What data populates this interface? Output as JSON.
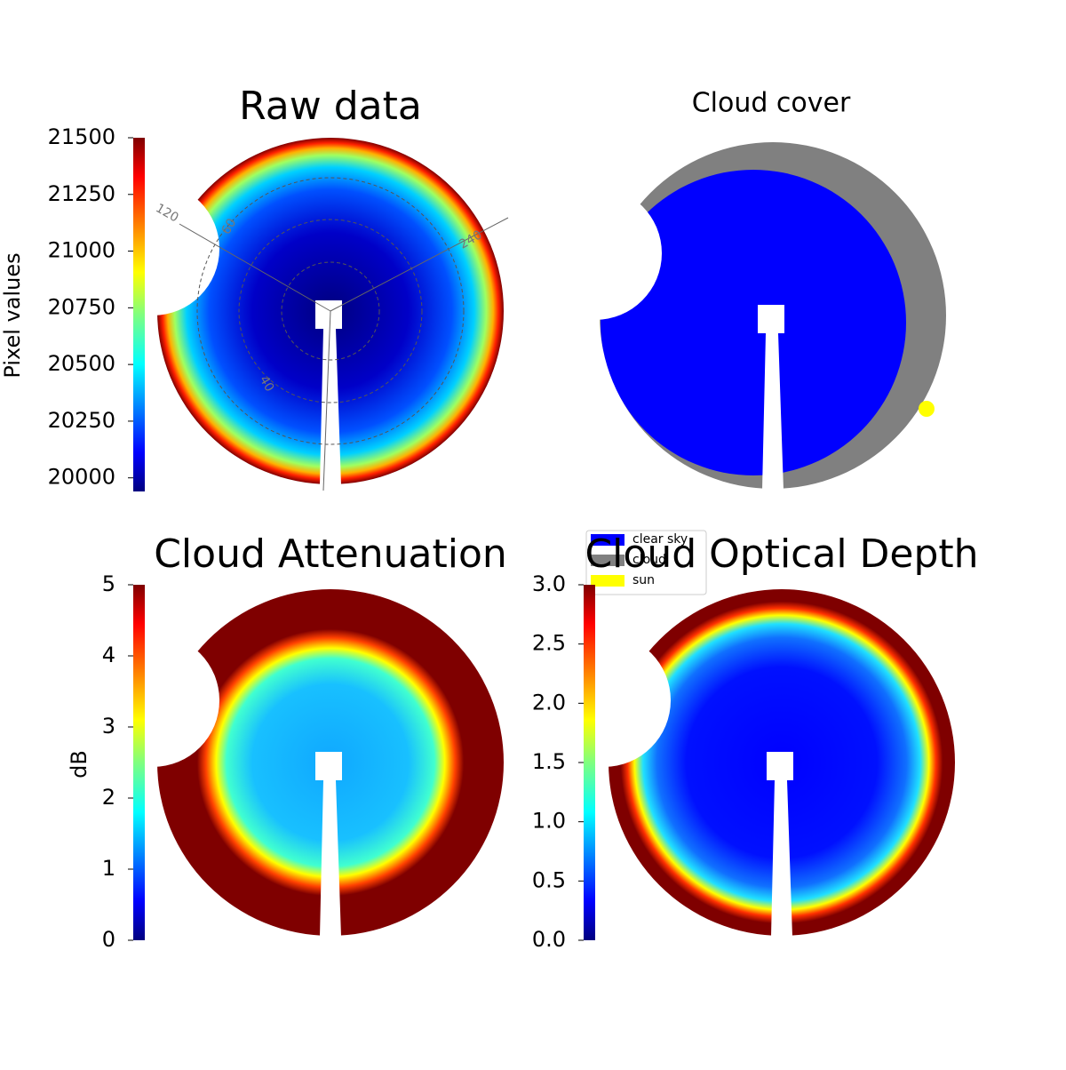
{
  "chart_data": [
    {
      "type": "image",
      "title": "Raw data",
      "colorbar": {
        "label": "Pixel values",
        "ylim": [
          19940,
          21500
        ],
        "yticks": [
          20000,
          20250,
          20500,
          20750,
          21000,
          21250,
          21500
        ]
      },
      "annotations": [
        "120",
        "60",
        "240",
        "40"
      ]
    },
    {
      "type": "image",
      "title": "Cloud cover",
      "legend": {
        "labels": [
          "clear sky",
          "cloud",
          "sun"
        ],
        "colors": [
          "#0000ff",
          "#808080",
          "#ffff00"
        ]
      }
    },
    {
      "type": "image",
      "title": "Cloud Attenuation",
      "colorbar": {
        "label": "dB",
        "ylim": [
          0,
          5
        ],
        "yticks": [
          0,
          1,
          2,
          3,
          4,
          5
        ]
      }
    },
    {
      "type": "image",
      "title": "Cloud Optical Depth",
      "colorbar": {
        "ylim": [
          0,
          3
        ],
        "yticks": [
          {
            "value": 0,
            "label": "0.0"
          },
          0.5,
          {
            "value": 1,
            "label": "1.0"
          },
          1.5,
          {
            "value": 2,
            "label": "2.0"
          },
          2.5,
          {
            "value": 3,
            "label": "3.0"
          }
        ]
      }
    }
  ]
}
